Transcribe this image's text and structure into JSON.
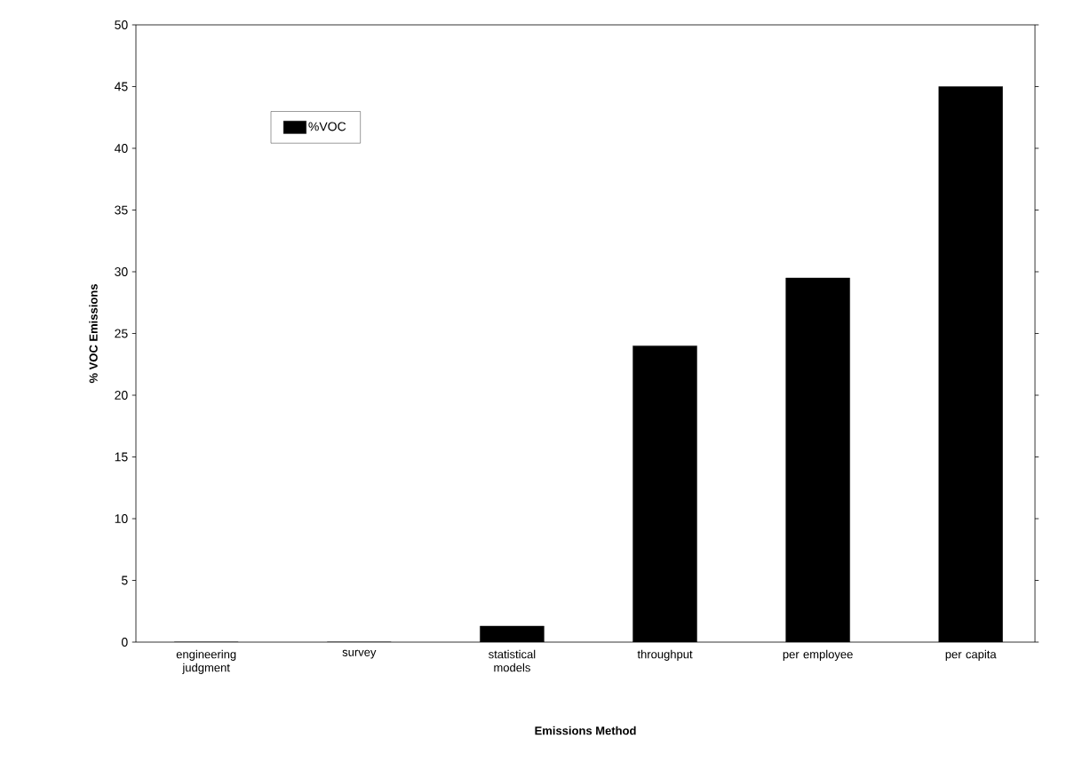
{
  "chart_data": {
    "type": "bar",
    "xlabel": "Emissions Method",
    "ylabel": "% VOC Emissions",
    "categories": [
      "engineering judgment",
      "survey",
      "statistical models",
      "throughput",
      "per employee",
      "per capita"
    ],
    "series": [
      {
        "name": "%VOC",
        "color": "#000000",
        "values": [
          0,
          0,
          1.3,
          24,
          29.5,
          45
        ]
      }
    ],
    "ylim": [
      0,
      50
    ],
    "yticks": [
      0,
      5,
      10,
      15,
      20,
      25,
      30,
      35,
      40,
      45,
      50
    ],
    "legend": "top left",
    "grid": false
  }
}
